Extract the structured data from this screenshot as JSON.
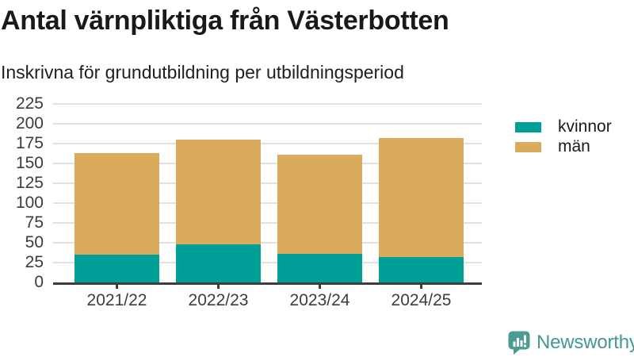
{
  "header": {
    "title": "Antal värnpliktiga från Västerbotten",
    "subtitle": "Inskrivna för grundutbildning per utbildningsperiod"
  },
  "legend": {
    "position": "right-top",
    "items": [
      {
        "key": "kvinnor",
        "label": "kvinnor",
        "color": "#00a099"
      },
      {
        "key": "man",
        "label": "män",
        "color": "#d9ab5a"
      }
    ]
  },
  "chart_data": {
    "type": "bar",
    "stacked": true,
    "title": "Antal värnpliktiga från Västerbotten",
    "subtitle": "Inskrivna för grundutbildning per utbildningsperiod",
    "categories": [
      "2021/22",
      "2022/23",
      "2023/24",
      "2024/25"
    ],
    "series": [
      {
        "name": "kvinnor",
        "key": "kvinnor",
        "color": "#00a099",
        "values": [
          35,
          48,
          36,
          32
        ]
      },
      {
        "name": "män",
        "key": "man",
        "color": "#d9ab5a",
        "values": [
          128,
          132,
          125,
          150
        ]
      }
    ],
    "totals": [
      163,
      180,
      161,
      182
    ],
    "xlabel": "",
    "ylabel": "",
    "ylim": [
      0,
      225
    ],
    "ytick_step": 25,
    "yticks": [
      0,
      25,
      50,
      75,
      100,
      125,
      150,
      175,
      200,
      225
    ],
    "grid": "horizontal",
    "legend_position": "right-top"
  },
  "footer": {
    "brand": "Newsworthy",
    "brand_color": "#45988f",
    "logo_icon": "newsworthy-speech-bubble-chart-icon"
  },
  "colors": {
    "kvinnor": "#00a099",
    "man": "#d9ab5a",
    "gridline": "#e1e1e1",
    "axis": "#3d3d3d",
    "text_dark": "#191919",
    "axis_label": "#3c3c3c",
    "logo_teal": "#4a9c95"
  }
}
